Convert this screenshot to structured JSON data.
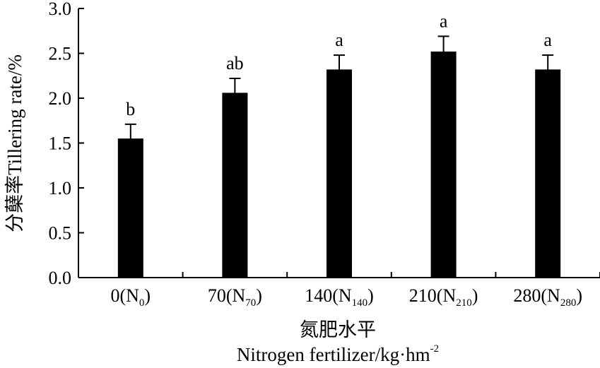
{
  "chart_data": {
    "type": "bar",
    "categories": [
      {
        "base": "0(N",
        "sub": "0",
        "close": ")"
      },
      {
        "base": "70(N",
        "sub": "70",
        "close": ")"
      },
      {
        "base": "140(N",
        "sub": "140",
        "close": ")"
      },
      {
        "base": "210(N",
        "sub": "210",
        "close": ")"
      },
      {
        "base": "280(N",
        "sub": "280",
        "close": ")"
      }
    ],
    "values": [
      1.55,
      2.06,
      2.32,
      2.52,
      2.32
    ],
    "errors": [
      0.16,
      0.16,
      0.16,
      0.17,
      0.16
    ],
    "significance": [
      "b",
      "ab",
      "a",
      "a",
      "a"
    ],
    "ylabel": "分蘖率Tillering rate/%",
    "xlabel_cn": "氮肥水平",
    "xlabel_en_base": "Nitrogen fertilizer/kg·hm",
    "xlabel_en_sup": "-2",
    "ylim": [
      0,
      3.0
    ],
    "yticks": [
      "0.0",
      "0.5",
      "1.0",
      "1.5",
      "2.0",
      "2.5",
      "3.0"
    ],
    "bar_color": "#000000",
    "grid": false,
    "legend": "none"
  }
}
